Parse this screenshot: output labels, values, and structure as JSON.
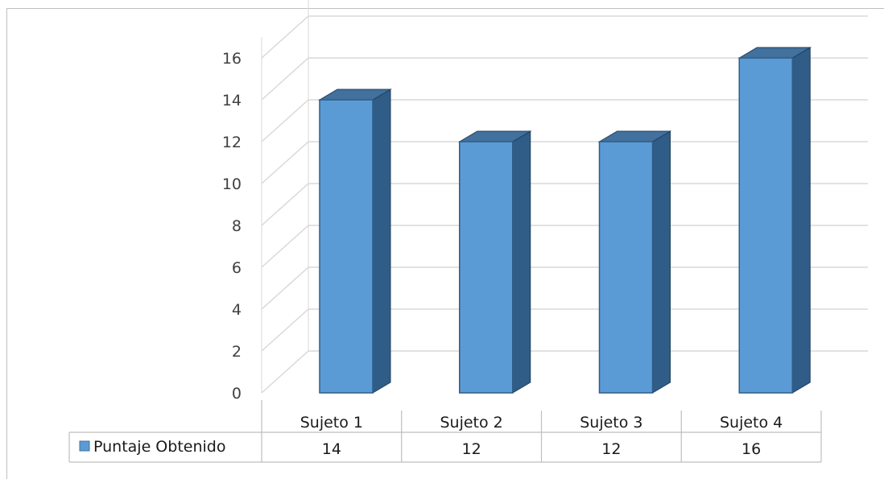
{
  "chart_data": {
    "type": "bar",
    "title": "",
    "xlabel": "",
    "ylabel": "",
    "categories": [
      "Sujeto 1",
      "Sujeto 2",
      "Sujeto 3",
      "Sujeto 4"
    ],
    "series": [
      {
        "name": "Puntaje Obtenido",
        "values": [
          14,
          12,
          12,
          16
        ]
      }
    ],
    "ylim": [
      0,
      16
    ],
    "yticks": [
      0,
      2,
      4,
      6,
      8,
      10,
      12,
      14,
      16
    ],
    "grid": true,
    "legend": "data-table-left",
    "colors": {
      "bar_front": "#5b9bd5",
      "bar_side": "#2f5d87",
      "bar_top": "#41719c",
      "grid": "#d9d9d9"
    },
    "data_table": {
      "legend_label": "Puntaje Obtenido",
      "values": [
        "14",
        "12",
        "12",
        "16"
      ]
    }
  }
}
